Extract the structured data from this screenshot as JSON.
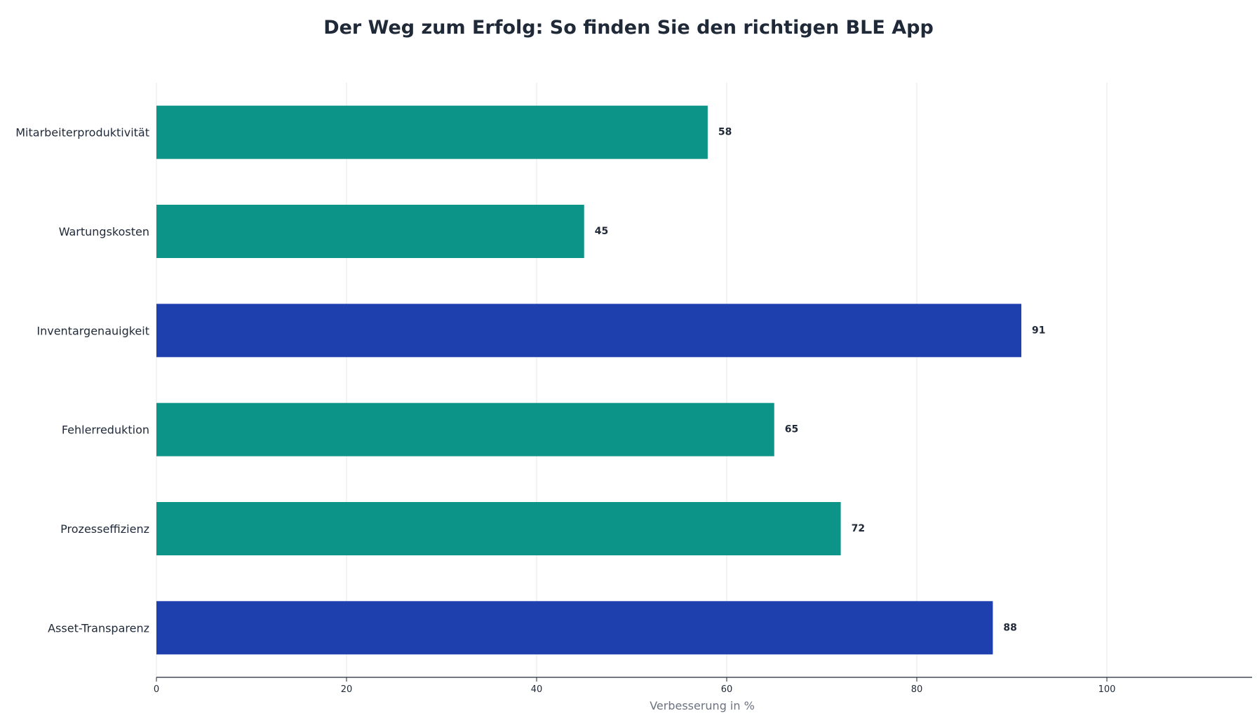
{
  "chart_data": {
    "type": "bar",
    "orientation": "horizontal",
    "title": "Der Weg zum Erfolg: So finden Sie den richtigen BLE App",
    "xlabel": "Verbesserung in %",
    "ylabel": "",
    "categories": [
      "Mitarbeiterproduktivität",
      "Wartungskosten",
      "Inventargenauigkeit",
      "Fehlerreduktion",
      "Prozesseffizienz",
      "Asset-Transparenz"
    ],
    "values": [
      58,
      45,
      91,
      65,
      72,
      88
    ],
    "highlighted": [
      false,
      false,
      true,
      false,
      false,
      true
    ],
    "xlim": [
      0,
      115
    ],
    "xticks": [
      0,
      20,
      40,
      60,
      80,
      100
    ],
    "grid": "vertical",
    "legend": "none",
    "colors": {
      "default": "#0d9488",
      "highlight": "#1e40af",
      "grid": "#e5e7eb",
      "axis": "#1f2937",
      "text": "#1f2937",
      "xlabel": "#6b7280"
    }
  }
}
